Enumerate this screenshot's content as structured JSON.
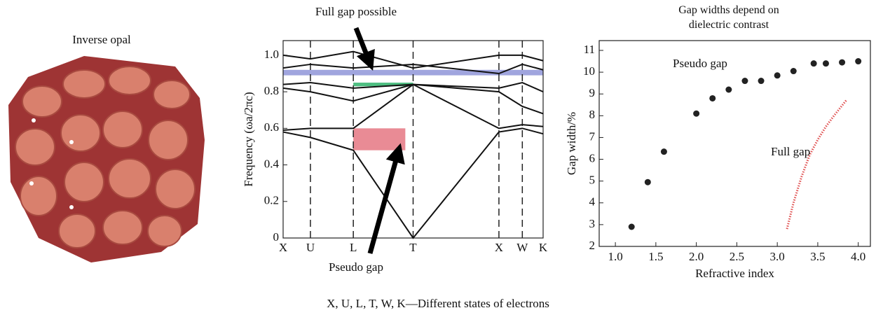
{
  "panel_a": {
    "caption": "Inverse opal"
  },
  "footnote": "X, U, L, T, W, K—Different states of electrons",
  "chart_data": [
    {
      "type": "line",
      "ylabel": "Frequency (ωa/2πc)",
      "annotations": [
        "Full gap possible",
        "Pseudo gap"
      ],
      "xlim": [
        0,
        1
      ],
      "xticks": [
        {
          "value": 0,
          "label": "X"
        },
        {
          "value": 0.105,
          "label": "U"
        },
        {
          "value": 0.27,
          "label": "L"
        },
        {
          "value": 0.5,
          "label": "T"
        },
        {
          "value": 0.83,
          "label": "X"
        },
        {
          "value": 0.92,
          "label": "W"
        },
        {
          "value": 1,
          "label": "K"
        }
      ],
      "ylim": [
        0,
        1.08
      ],
      "yticks": [
        0,
        0.2,
        0.4,
        0.6,
        0.8,
        {
          "value": 1,
          "label": "1.0"
        }
      ],
      "x": [
        0,
        0.105,
        0.27,
        0.5,
        0.83,
        0.92,
        1
      ],
      "series": [
        {
          "color": "#111111",
          "values": [
            0.58,
            0.55,
            0.48,
            0,
            0.58,
            0.6,
            0.57
          ]
        },
        {
          "color": "#111111",
          "values": [
            0.59,
            0.6,
            0.6,
            0.84,
            0.6,
            0.62,
            0.61
          ]
        },
        {
          "color": "#111111",
          "values": [
            0.82,
            0.8,
            0.75,
            0.84,
            0.8,
            0.72,
            0.68
          ]
        },
        {
          "color": "#111111",
          "values": [
            0.84,
            0.85,
            0.82,
            0.84,
            0.82,
            0.85,
            0.8
          ]
        },
        {
          "color": "#111111",
          "values": [
            0.93,
            0.95,
            0.93,
            0.95,
            0.9,
            0.95,
            0.92
          ]
        },
        {
          "color": "#111111",
          "values": [
            1.0,
            0.98,
            1.02,
            0.93,
            1.0,
            1.0,
            0.97
          ]
        }
      ],
      "shaded_bands": [
        {
          "xmin": 0,
          "xmax": 1,
          "ymin": 0.89,
          "ymax": 0.92,
          "color": "#8f95d8"
        },
        {
          "xmin": 0.27,
          "xmax": 0.5,
          "ymin": 0.83,
          "ymax": 0.85,
          "color": "#2fb36b"
        },
        {
          "xmin": 0.27,
          "xmax": 0.47,
          "ymin": 0.48,
          "ymax": 0.6,
          "color": "#e57783"
        }
      ]
    },
    {
      "type": "scatter",
      "title": "Gap widths depend on dielectric contrast",
      "xlabel": "Refractive index",
      "ylabel": "Gap width/%",
      "xlim": [
        0.8,
        4.15
      ],
      "xticks": [
        {
          "value": 1,
          "label": "1.0"
        },
        1.5,
        {
          "value": 2,
          "label": "2.0"
        },
        2.5,
        {
          "value": 3,
          "label": "3.0"
        },
        3.5,
        {
          "value": 4,
          "label": "4.0"
        }
      ],
      "ylim": [
        2,
        11.45
      ],
      "yticks": [
        2,
        3,
        4,
        5,
        6,
        7,
        8,
        9,
        10,
        11
      ],
      "series": [
        {
          "name": "Pseudo gap",
          "color": "#222222",
          "line_style": "markers",
          "x": [
            1.2,
            1.4,
            1.6,
            2.0,
            2.2,
            2.4,
            2.6,
            2.8,
            3.0,
            3.2,
            3.45,
            3.6,
            3.8,
            4.0
          ],
          "values": [
            2.9,
            4.95,
            6.35,
            8.1,
            8.8,
            9.2,
            9.6,
            9.6,
            9.85,
            10.05,
            10.4,
            10.4,
            10.45,
            10.5
          ]
        },
        {
          "name": "Full gap",
          "color": "#e05050",
          "line_style": "dotted",
          "x": [
            3.12,
            3.2,
            3.3,
            3.4,
            3.5,
            3.6,
            3.7,
            3.85
          ],
          "values": [
            2.8,
            4.0,
            5.2,
            6.2,
            6.9,
            7.5,
            8.0,
            8.7
          ]
        }
      ]
    }
  ]
}
